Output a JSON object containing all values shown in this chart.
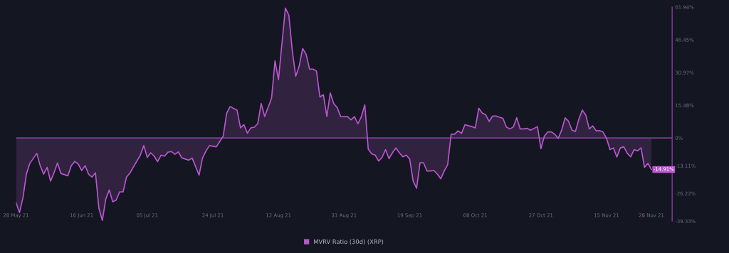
{
  "chart_data": {
    "type": "area",
    "x": [
      "2021-05-28",
      "2021-05-29",
      "2021-05-30",
      "2021-05-31",
      "2021-06-01",
      "2021-06-03",
      "2021-06-04",
      "2021-06-05",
      "2021-06-06",
      "2021-06-07",
      "2021-06-08",
      "2021-06-09",
      "2021-06-10",
      "2021-06-12",
      "2021-06-13",
      "2021-06-14",
      "2021-06-15",
      "2021-06-16",
      "2021-06-17",
      "2021-06-18",
      "2021-06-19",
      "2021-06-20",
      "2021-06-21",
      "2021-06-22",
      "2021-06-23",
      "2021-06-24",
      "2021-06-25",
      "2021-06-26",
      "2021-06-27",
      "2021-06-28",
      "2021-06-29",
      "2021-06-30",
      "2021-07-01",
      "2021-07-03",
      "2021-07-04",
      "2021-07-05",
      "2021-07-06",
      "2021-07-07",
      "2021-07-08",
      "2021-07-09",
      "2021-07-10",
      "2021-07-11",
      "2021-07-12",
      "2021-07-13",
      "2021-07-14",
      "2021-07-15",
      "2021-07-17",
      "2021-07-18",
      "2021-07-20",
      "2021-07-21",
      "2021-07-22",
      "2021-07-23",
      "2021-07-25",
      "2021-07-27",
      "2021-07-28",
      "2021-07-29",
      "2021-07-30",
      "2021-07-31",
      "2021-08-01",
      "2021-08-02",
      "2021-08-03",
      "2021-08-04",
      "2021-08-05",
      "2021-08-06",
      "2021-08-07",
      "2021-08-08",
      "2021-08-10",
      "2021-08-11",
      "2021-08-12",
      "2021-08-14",
      "2021-08-15",
      "2021-08-16",
      "2021-08-17",
      "2021-08-18",
      "2021-08-19",
      "2021-08-20",
      "2021-08-21",
      "2021-08-22",
      "2021-08-23",
      "2021-08-24",
      "2021-08-25",
      "2021-08-26",
      "2021-08-27",
      "2021-08-28",
      "2021-08-29",
      "2021-08-30",
      "2021-09-01",
      "2021-09-02",
      "2021-09-03",
      "2021-09-04",
      "2021-09-05",
      "2021-09-06",
      "2021-09-07",
      "2021-09-08",
      "2021-09-09",
      "2021-09-10",
      "2021-09-11",
      "2021-09-12",
      "2021-09-13",
      "2021-09-14",
      "2021-09-15",
      "2021-09-16",
      "2021-09-17",
      "2021-09-18",
      "2021-09-19",
      "2021-09-20",
      "2021-09-21",
      "2021-09-22",
      "2021-09-23",
      "2021-09-24",
      "2021-09-25",
      "2021-09-26",
      "2021-09-27",
      "2021-09-28",
      "2021-09-29",
      "2021-09-30",
      "2021-10-01",
      "2021-10-02",
      "2021-10-03",
      "2021-10-04",
      "2021-10-05",
      "2021-10-07",
      "2021-10-08",
      "2021-10-09",
      "2021-10-10",
      "2021-10-11",
      "2021-10-12",
      "2021-10-13",
      "2021-10-14",
      "2021-10-16",
      "2021-10-17",
      "2021-10-18",
      "2021-10-19",
      "2021-10-20",
      "2021-10-21",
      "2021-10-22",
      "2021-10-23",
      "2021-10-24",
      "2021-10-26",
      "2021-10-27",
      "2021-10-28",
      "2021-10-29",
      "2021-10-30",
      "2021-10-31",
      "2021-11-01",
      "2021-11-02",
      "2021-11-03",
      "2021-11-04",
      "2021-11-05",
      "2021-11-06",
      "2021-11-07",
      "2021-11-08",
      "2021-11-09",
      "2021-11-10",
      "2021-11-11",
      "2021-11-12",
      "2021-11-13",
      "2021-11-14",
      "2021-11-15",
      "2021-11-16",
      "2021-11-17",
      "2021-11-18",
      "2021-11-19",
      "2021-11-20",
      "2021-11-21",
      "2021-11-22",
      "2021-11-23",
      "2021-11-24",
      "2021-11-25",
      "2021-11-26",
      "2021-11-27",
      "2021-11-28"
    ],
    "series": [
      {
        "name": "MVRV Ratio (30d) (XRP)",
        "color": "#b957cf",
        "values": [
          -30.6,
          -35.3,
          -28.3,
          -17.1,
          -12.0,
          -7.3,
          -13.1,
          -17.1,
          -13.9,
          -20.4,
          -16.5,
          -11.8,
          -16.8,
          -17.9,
          -13.1,
          -11.1,
          -12.3,
          -15.4,
          -13.1,
          -17.1,
          -18.5,
          -16.5,
          -33.3,
          -39.0,
          -28.8,
          -24.6,
          -30.2,
          -29.4,
          -25.5,
          -25.5,
          -18.5,
          -16.5,
          -13.7,
          -8.1,
          -3.6,
          -9.2,
          -7.0,
          -8.6,
          -11.2,
          -8.1,
          -8.6,
          -6.7,
          -6.4,
          -7.7,
          -6.6,
          -9.4,
          -10.5,
          -9.5,
          -17.6,
          -9.5,
          -6.2,
          -3.6,
          -4.2,
          0.9,
          11.8,
          14.9,
          14.0,
          13.2,
          4.8,
          6.3,
          2.3,
          4.8,
          5.1,
          6.8,
          16.3,
          10.2,
          18.8,
          36.5,
          27.6,
          61.5,
          58.1,
          41.3,
          29.2,
          34.0,
          42.4,
          39.6,
          32.6,
          32.6,
          31.7,
          19.4,
          20.5,
          10.2,
          21.3,
          16.3,
          14.4,
          10.2,
          10.1,
          8.6,
          10.1,
          6.7,
          10.1,
          15.7,
          -5.3,
          -7.5,
          -8.1,
          -10.9,
          -9.2,
          -5.5,
          -9.8,
          -7.0,
          -4.7,
          -7.0,
          -8.9,
          -8.1,
          -10.0,
          -20.4,
          -23.8,
          -11.7,
          -11.7,
          -15.6,
          -15.6,
          -15.4,
          -17.1,
          -19.3,
          -15.6,
          -12.6,
          1.8,
          1.8,
          3.4,
          2.2,
          6.3,
          5.4,
          4.8,
          14.1,
          11.8,
          11.0,
          7.8,
          10.4,
          10.4,
          9.3,
          5.2,
          4.3,
          5.2,
          9.6,
          4.3,
          4.3,
          4.6,
          3.7,
          5.4,
          -5.1,
          0.9,
          2.9,
          2.9,
          1.8,
          -0.2,
          3.7,
          9.5,
          7.9,
          3.7,
          3.1,
          9.0,
          13.2,
          10.8,
          4.3,
          5.7,
          3.4,
          3.5,
          2.8,
          -0.2,
          -5.5,
          -4.7,
          -9.0,
          -4.7,
          -4.2,
          -7.2,
          -8.9,
          -5.5,
          -6.1,
          -4.7,
          -13.9,
          -12.0,
          -14.91
        ]
      }
    ],
    "xlim": [
      "2021-05-28",
      "2021-12-04"
    ],
    "xticks": [
      {
        "value": "2021-05-28",
        "label": "28 May 21"
      },
      {
        "value": "2021-06-16",
        "label": "16 Jun 21"
      },
      {
        "value": "2021-07-05",
        "label": "05 Jul 21"
      },
      {
        "value": "2021-07-24",
        "label": "24 Jul 21"
      },
      {
        "value": "2021-08-12",
        "label": "12 Aug 21"
      },
      {
        "value": "2021-08-31",
        "label": "31 Aug 21"
      },
      {
        "value": "2021-09-19",
        "label": "19 Sep 21"
      },
      {
        "value": "2021-10-08",
        "label": "08 Oct 21"
      },
      {
        "value": "2021-10-27",
        "label": "27 Oct 21"
      },
      {
        "value": "2021-11-15",
        "label": "15 Nov 21"
      },
      {
        "value": "2021-11-28",
        "label": "28 Nov 21"
      }
    ],
    "ylim": [
      -39.33,
      61.94
    ],
    "yticks": [
      {
        "value": 61.94,
        "label": "61.94%"
      },
      {
        "value": 46.45,
        "label": "46.45%"
      },
      {
        "value": 30.97,
        "label": "30.97%"
      },
      {
        "value": 15.48,
        "label": "15.48%"
      },
      {
        "value": 0,
        "label": "0%"
      },
      {
        "value": -13.11,
        "label": "-13.11%"
      },
      {
        "value": -26.22,
        "label": "-26.22%"
      },
      {
        "value": -39.33,
        "label": "-39.33%"
      }
    ],
    "ref_lines": [
      {
        "axis": "y",
        "value": 0,
        "color": "#7a3f8c"
      }
    ],
    "annotations": [
      {
        "text": "-14.91%",
        "x": "2021-11-28",
        "y": -14.91
      }
    ],
    "legend": "bottom",
    "line_style": "solid",
    "marker": "none"
  }
}
